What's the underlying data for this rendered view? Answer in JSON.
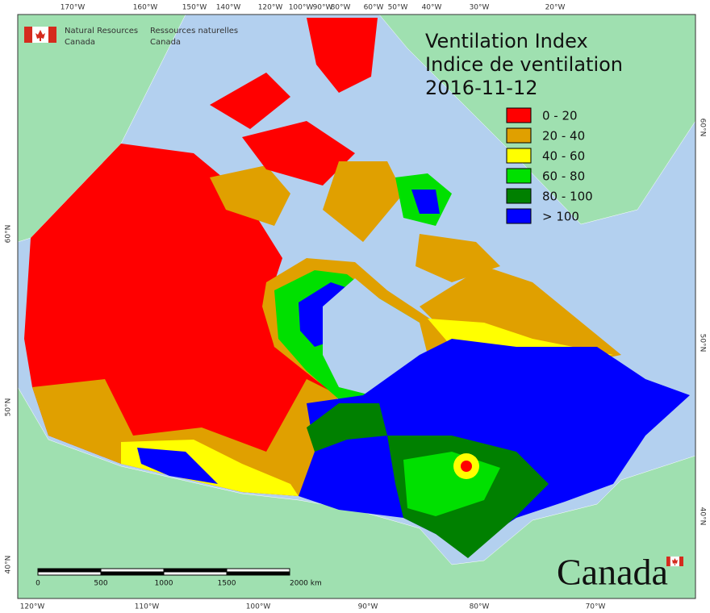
{
  "header": {
    "agency_en": [
      "Natural Resources",
      "Canada"
    ],
    "agency_fr": [
      "Ressources naturelles",
      "Canada"
    ]
  },
  "title": {
    "lines": [
      "Ventilation Index",
      "Indice de ventilation"
    ],
    "date": "2016-11-12"
  },
  "legend": [
    {
      "label": "0 - 20",
      "color": "#ff0000"
    },
    {
      "label": "20 - 40",
      "color": "#e0a000"
    },
    {
      "label": "40 - 60",
      "color": "#ffff00"
    },
    {
      "label": "60 - 80",
      "color": "#00e000"
    },
    {
      "label": "80 - 100",
      "color": "#008000"
    },
    {
      "label": "> 100",
      "color": "#0000ff"
    }
  ],
  "graticule": {
    "top": [
      "170°W",
      "160°W",
      "150°W",
      "140°W",
      "120°W",
      "100°W",
      "90°W",
      "80°W",
      "60°W",
      "50°W",
      "40°W",
      "30°W",
      "20°W"
    ],
    "bottom": [
      "120°W",
      "110°W",
      "100°W",
      "90°W",
      "80°W",
      "70°W"
    ],
    "left": [
      "60°N",
      "50°N",
      "40°N"
    ],
    "right": [
      "60°N",
      "50°N",
      "40°N"
    ]
  },
  "scale_bar": [
    "0",
    "500",
    "1000",
    "1500",
    "2000  km"
  ],
  "wordmark": "Canada"
}
